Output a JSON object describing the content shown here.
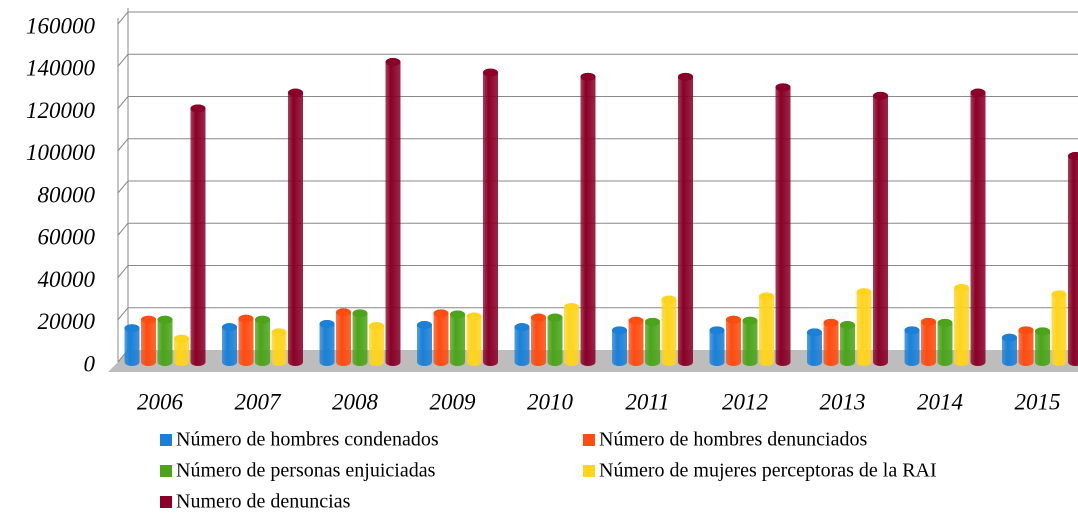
{
  "chart_data": {
    "type": "bar",
    "categories": [
      "2006",
      "2007",
      "2008",
      "2009",
      "2010",
      "2011",
      "2012",
      "2013",
      "2014",
      "2015"
    ],
    "series": [
      {
        "name": "Número de hombres condenados",
        "color": "#1a80d8",
        "values": [
          16000,
          16500,
          18000,
          17500,
          16500,
          15000,
          15000,
          14000,
          15000,
          11500
        ]
      },
      {
        "name": "Número de hombres denunciados",
        "color": "#ff4c10",
        "values": [
          20000,
          20500,
          23500,
          23000,
          21000,
          19500,
          20000,
          18500,
          19000,
          15000
        ]
      },
      {
        "name": "Número de personas enjuiciadas",
        "color": "#4ba41a",
        "values": [
          20000,
          20000,
          23000,
          22500,
          21000,
          19000,
          19500,
          17500,
          18500,
          14500
        ]
      },
      {
        "name": "Número de mujeres perceptoras de la RAI",
        "color": "#ffd41c",
        "values": [
          11000,
          14000,
          17000,
          21500,
          26000,
          29500,
          31000,
          33000,
          35000,
          32000
        ]
      },
      {
        "name": "Numero de denuncias",
        "color": "#8a0028",
        "values": [
          120000,
          127500,
          142000,
          137000,
          135000,
          135000,
          130000,
          126000,
          127500,
          97500
        ]
      }
    ],
    "ylim": [
      0,
      160000
    ],
    "yticks": [
      0,
      20000,
      40000,
      60000,
      80000,
      100000,
      120000,
      140000,
      160000
    ],
    "grid": true,
    "legend": "bottom"
  }
}
